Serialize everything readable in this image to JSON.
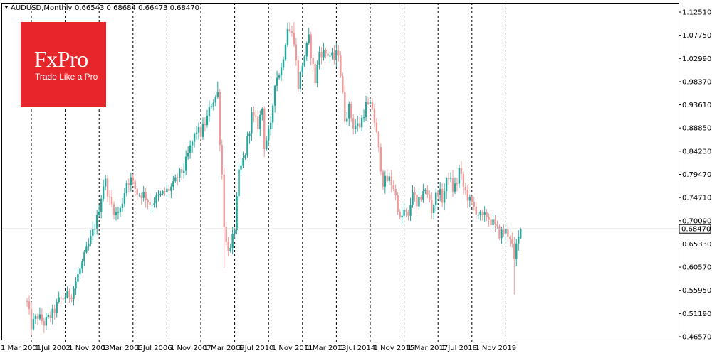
{
  "header": {
    "symbol": "AUDUSD,Monthly",
    "ohlc": "0.66543 0.68684 0.66473 0.68470"
  },
  "logo": {
    "word": "FxPro",
    "tagline": "Trade Like a Pro"
  },
  "colors": {
    "bull": "#26a69a",
    "bear": "#ef9a9a",
    "grid": "#000000",
    "logo_bg": "#e8252b",
    "current_line": "#c0c0c0"
  },
  "chart_data": {
    "type": "candlestick",
    "symbol": "AUDUSD",
    "timeframe": "Monthly",
    "ylim": [
      0.465,
      1.135
    ],
    "y_ticks": [
      "1.12510",
      "1.07750",
      "1.02990",
      "0.98370",
      "0.93610",
      "0.88850",
      "0.84230",
      "0.79470",
      "0.74710",
      "0.70090",
      "0.65330",
      "0.60570",
      "0.55950",
      "0.51190",
      "0.46570"
    ],
    "x_ticks": [
      "1 Mar 2001",
      "1 Jul 2002",
      "1 Nov 2003",
      "1 Mar 2005",
      "1 Jul 2006",
      "1 Nov 2007",
      "1 Mar 2009",
      "1 Jul 2010",
      "1 Nov 2011",
      "1 Mar 2013",
      "1 Jul 2014",
      "1 Nov 2015",
      "1 Mar 2017",
      "1 Jul 2018",
      "1 Nov 2019"
    ],
    "current_price": "0.68470",
    "current_value": 0.6847,
    "ohlc_last": {
      "open": 0.66543,
      "high": 0.68684,
      "low": 0.66473,
      "close": 0.6847
    },
    "close_anchors": [
      [
        "2001-01",
        0.534
      ],
      [
        "2001-03",
        0.488
      ],
      [
        "2001-06",
        0.508
      ],
      [
        "2001-09",
        0.493
      ],
      [
        "2002-01",
        0.512
      ],
      [
        "2002-04",
        0.538
      ],
      [
        "2002-07",
        0.548
      ],
      [
        "2002-10",
        0.553
      ],
      [
        "2003-01",
        0.59
      ],
      [
        "2003-04",
        0.627
      ],
      [
        "2003-07",
        0.664
      ],
      [
        "2003-10",
        0.705
      ],
      [
        "2004-01",
        0.775
      ],
      [
        "2004-02",
        0.78
      ],
      [
        "2004-04",
        0.742
      ],
      [
        "2004-07",
        0.715
      ],
      [
        "2004-09",
        0.723
      ],
      [
        "2004-12",
        0.78
      ],
      [
        "2005-02",
        0.785
      ],
      [
        "2005-05",
        0.757
      ],
      [
        "2005-08",
        0.755
      ],
      [
        "2005-11",
        0.737
      ],
      [
        "2006-01",
        0.742
      ],
      [
        "2006-04",
        0.752
      ],
      [
        "2006-07",
        0.762
      ],
      [
        "2006-10",
        0.772
      ],
      [
        "2006-12",
        0.79
      ],
      [
        "2007-03",
        0.807
      ],
      [
        "2007-06",
        0.848
      ],
      [
        "2007-09",
        0.885
      ],
      [
        "2007-11",
        0.878
      ],
      [
        "2008-02",
        0.91
      ],
      [
        "2008-04",
        0.94
      ],
      [
        "2008-07",
        0.96
      ],
      [
        "2008-08",
        0.865
      ],
      [
        "2008-09",
        0.795
      ],
      [
        "2008-10",
        0.697
      ],
      [
        "2008-11",
        0.655
      ],
      [
        "2009-01",
        0.64
      ],
      [
        "2009-03",
        0.688
      ],
      [
        "2009-05",
        0.795
      ],
      [
        "2009-08",
        0.84
      ],
      [
        "2009-11",
        0.915
      ],
      [
        "2010-02",
        0.895
      ],
      [
        "2010-04",
        0.93
      ],
      [
        "2010-05",
        0.855
      ],
      [
        "2010-08",
        0.89
      ],
      [
        "2010-10",
        0.985
      ],
      [
        "2011-01",
        1.01
      ],
      [
        "2011-04",
        1.095
      ],
      [
        "2011-07",
        1.07
      ],
      [
        "2011-09",
        0.975
      ],
      [
        "2011-11",
        1.02
      ],
      [
        "2012-02",
        1.07
      ],
      [
        "2012-05",
        0.985
      ],
      [
        "2012-07",
        1.045
      ],
      [
        "2012-11",
        1.04
      ],
      [
        "2013-02",
        1.03
      ],
      [
        "2013-04",
        1.045
      ],
      [
        "2013-07",
        0.91
      ],
      [
        "2013-09",
        0.93
      ],
      [
        "2013-11",
        0.895
      ],
      [
        "2014-02",
        0.895
      ],
      [
        "2014-05",
        0.935
      ],
      [
        "2014-08",
        0.932
      ],
      [
        "2014-10",
        0.875
      ],
      [
        "2015-01",
        0.78
      ],
      [
        "2015-04",
        0.785
      ],
      [
        "2015-06",
        0.77
      ],
      [
        "2015-08",
        0.73
      ],
      [
        "2015-09",
        0.7
      ],
      [
        "2015-11",
        0.72
      ],
      [
        "2016-01",
        0.705
      ],
      [
        "2016-03",
        0.765
      ],
      [
        "2016-05",
        0.725
      ],
      [
        "2016-08",
        0.765
      ],
      [
        "2016-11",
        0.745
      ],
      [
        "2016-12",
        0.722
      ],
      [
        "2017-03",
        0.765
      ],
      [
        "2017-05",
        0.745
      ],
      [
        "2017-08",
        0.795
      ],
      [
        "2017-10",
        0.765
      ],
      [
        "2017-12",
        0.78
      ],
      [
        "2018-01",
        0.805
      ],
      [
        "2018-03",
        0.77
      ],
      [
        "2018-06",
        0.74
      ],
      [
        "2018-09",
        0.722
      ],
      [
        "2018-12",
        0.705
      ],
      [
        "2019-02",
        0.712
      ],
      [
        "2019-05",
        0.695
      ],
      [
        "2019-08",
        0.675
      ],
      [
        "2019-11",
        0.68
      ],
      [
        "2020-01",
        0.67
      ],
      [
        "2020-02",
        0.65
      ],
      [
        "2020-03",
        0.614
      ],
      [
        "2020-04",
        0.65
      ],
      [
        "2020-05",
        0.665
      ],
      [
        "2020-06",
        0.6847
      ]
    ],
    "wick_extremes": [
      [
        "2008-07",
        0.984,
        "high"
      ],
      [
        "2008-10",
        0.605,
        "low"
      ],
      [
        "2011-07",
        1.105,
        "high"
      ],
      [
        "2020-03",
        0.551,
        "low"
      ],
      [
        "2001-04",
        0.478,
        "low"
      ]
    ]
  }
}
